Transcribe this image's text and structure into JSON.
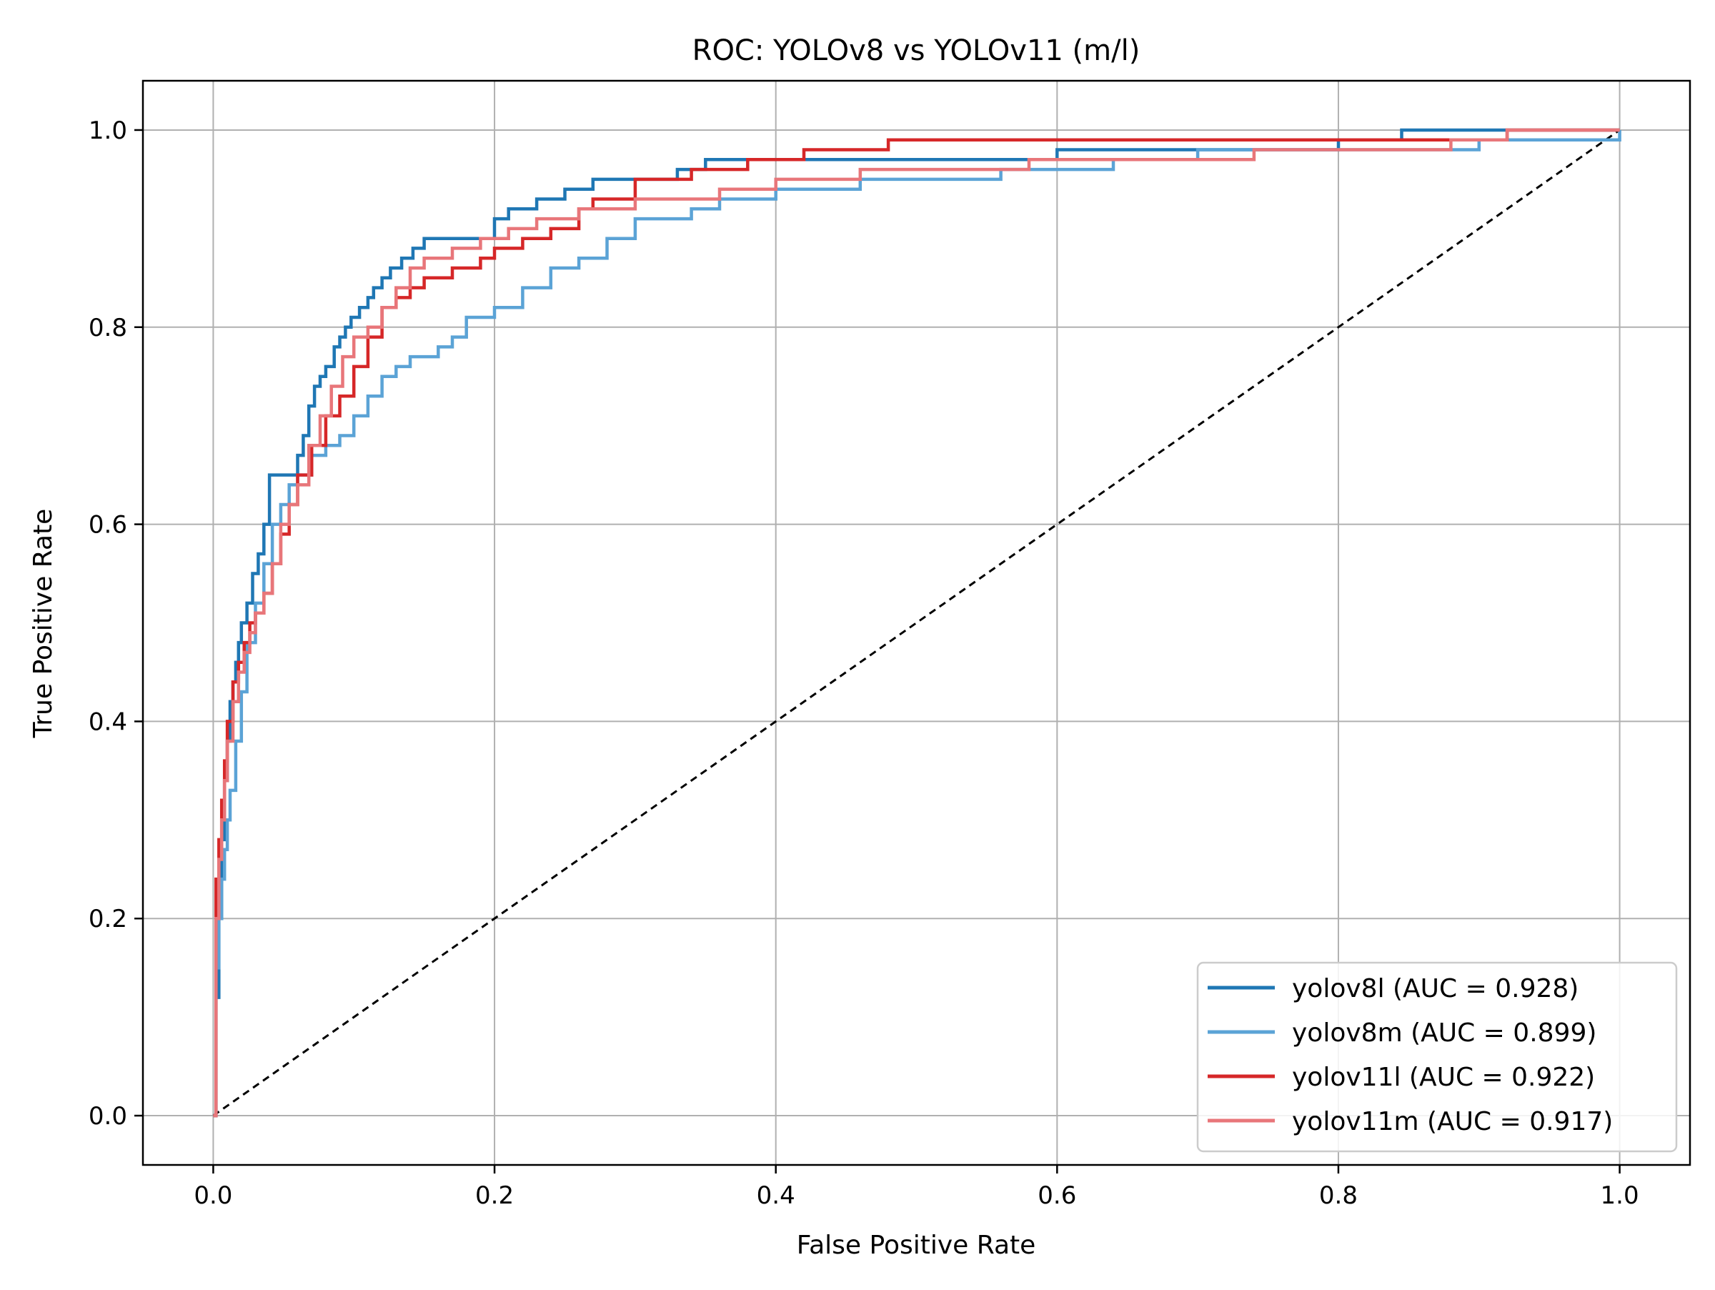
{
  "chart_data": {
    "type": "line",
    "title": "ROC: YOLOv8 vs YOLOv11 (m/l)",
    "xlabel": "False Positive Rate",
    "ylabel": "True Positive Rate",
    "xlim": [
      -0.05,
      1.05
    ],
    "ylim": [
      -0.05,
      1.05
    ],
    "xticks": [
      0.0,
      0.2,
      0.4,
      0.6,
      0.8,
      1.0
    ],
    "yticks": [
      0.0,
      0.2,
      0.4,
      0.6,
      0.8,
      1.0
    ],
    "xtick_labels": [
      "0.0",
      "0.2",
      "0.4",
      "0.6",
      "0.8",
      "1.0"
    ],
    "ytick_labels": [
      "0.0",
      "0.2",
      "0.4",
      "0.6",
      "0.8",
      "1.0"
    ],
    "grid": true,
    "legend_position": "lower-right",
    "diagonal": {
      "x": [
        0,
        1
      ],
      "y": [
        0,
        1
      ],
      "style": "dashed",
      "color": "#000000"
    },
    "series": [
      {
        "name": "yolov8l (AUC = 0.928)",
        "color": "#1f77b4",
        "x": [
          0.0,
          0.002,
          0.004,
          0.006,
          0.008,
          0.01,
          0.012,
          0.014,
          0.016,
          0.018,
          0.02,
          0.024,
          0.028,
          0.032,
          0.036,
          0.04,
          0.06,
          0.064,
          0.068,
          0.072,
          0.076,
          0.08,
          0.086,
          0.09,
          0.094,
          0.098,
          0.104,
          0.11,
          0.114,
          0.12,
          0.126,
          0.134,
          0.142,
          0.15,
          0.16,
          0.2,
          0.21,
          0.23,
          0.25,
          0.27,
          0.3,
          0.33,
          0.35,
          0.4,
          0.45,
          0.52,
          0.6,
          0.7,
          0.74,
          0.8,
          0.845,
          0.87,
          1.0
        ],
        "y": [
          0.0,
          0.12,
          0.2,
          0.28,
          0.34,
          0.38,
          0.42,
          0.44,
          0.46,
          0.48,
          0.5,
          0.52,
          0.55,
          0.57,
          0.6,
          0.65,
          0.67,
          0.69,
          0.72,
          0.74,
          0.75,
          0.76,
          0.78,
          0.79,
          0.8,
          0.81,
          0.82,
          0.83,
          0.84,
          0.85,
          0.86,
          0.87,
          0.88,
          0.89,
          0.89,
          0.91,
          0.92,
          0.93,
          0.94,
          0.95,
          0.95,
          0.96,
          0.97,
          0.97,
          0.97,
          0.97,
          0.98,
          0.98,
          0.98,
          0.99,
          1.0,
          1.0,
          1.0
        ]
      },
      {
        "name": "yolov8m (AUC = 0.899)",
        "color": "#5ba3d6",
        "x": [
          0.0,
          0.002,
          0.004,
          0.006,
          0.008,
          0.01,
          0.012,
          0.016,
          0.02,
          0.024,
          0.03,
          0.036,
          0.042,
          0.048,
          0.054,
          0.06,
          0.07,
          0.08,
          0.09,
          0.1,
          0.11,
          0.12,
          0.13,
          0.14,
          0.16,
          0.17,
          0.18,
          0.2,
          0.22,
          0.24,
          0.26,
          0.28,
          0.3,
          0.34,
          0.36,
          0.4,
          0.46,
          0.52,
          0.56,
          0.6,
          0.64,
          0.7,
          0.8,
          0.9,
          1.0
        ],
        "y": [
          0.0,
          0.15,
          0.2,
          0.24,
          0.27,
          0.3,
          0.33,
          0.38,
          0.43,
          0.48,
          0.52,
          0.56,
          0.6,
          0.62,
          0.64,
          0.65,
          0.67,
          0.68,
          0.69,
          0.71,
          0.73,
          0.75,
          0.76,
          0.77,
          0.78,
          0.79,
          0.81,
          0.82,
          0.84,
          0.86,
          0.87,
          0.89,
          0.91,
          0.92,
          0.93,
          0.94,
          0.95,
          0.95,
          0.96,
          0.96,
          0.97,
          0.98,
          0.98,
          0.99,
          1.0
        ]
      },
      {
        "name": "yolov11l (AUC = 0.922)",
        "color": "#d62728",
        "x": [
          0.0,
          0.002,
          0.004,
          0.006,
          0.008,
          0.01,
          0.014,
          0.018,
          0.022,
          0.026,
          0.03,
          0.036,
          0.042,
          0.048,
          0.054,
          0.06,
          0.07,
          0.08,
          0.09,
          0.1,
          0.11,
          0.12,
          0.13,
          0.14,
          0.15,
          0.17,
          0.19,
          0.2,
          0.22,
          0.24,
          0.26,
          0.27,
          0.3,
          0.34,
          0.38,
          0.42,
          0.48,
          0.56,
          0.64,
          0.72,
          0.8,
          0.88,
          0.92,
          1.0
        ],
        "y": [
          0.0,
          0.24,
          0.28,
          0.32,
          0.36,
          0.4,
          0.44,
          0.46,
          0.48,
          0.5,
          0.51,
          0.53,
          0.56,
          0.59,
          0.62,
          0.65,
          0.68,
          0.71,
          0.73,
          0.76,
          0.79,
          0.82,
          0.83,
          0.84,
          0.85,
          0.86,
          0.87,
          0.88,
          0.89,
          0.9,
          0.92,
          0.93,
          0.95,
          0.96,
          0.97,
          0.98,
          0.99,
          0.99,
          0.99,
          0.99,
          0.99,
          0.99,
          1.0,
          1.0
        ]
      },
      {
        "name": "yolov11m (AUC = 0.917)",
        "color": "#e8767a",
        "x": [
          0.0,
          0.002,
          0.004,
          0.006,
          0.008,
          0.01,
          0.014,
          0.018,
          0.022,
          0.026,
          0.03,
          0.036,
          0.042,
          0.048,
          0.054,
          0.06,
          0.068,
          0.076,
          0.084,
          0.092,
          0.1,
          0.11,
          0.12,
          0.13,
          0.14,
          0.15,
          0.17,
          0.19,
          0.21,
          0.23,
          0.26,
          0.3,
          0.36,
          0.4,
          0.46,
          0.5,
          0.58,
          0.65,
          0.74,
          0.8,
          0.88,
          0.92,
          1.0
        ],
        "y": [
          0.0,
          0.2,
          0.26,
          0.3,
          0.34,
          0.38,
          0.42,
          0.45,
          0.47,
          0.49,
          0.51,
          0.53,
          0.56,
          0.6,
          0.62,
          0.64,
          0.68,
          0.71,
          0.74,
          0.77,
          0.79,
          0.8,
          0.82,
          0.84,
          0.86,
          0.87,
          0.88,
          0.89,
          0.9,
          0.91,
          0.92,
          0.93,
          0.94,
          0.95,
          0.96,
          0.96,
          0.97,
          0.97,
          0.98,
          0.98,
          0.99,
          1.0,
          1.0
        ]
      }
    ]
  }
}
